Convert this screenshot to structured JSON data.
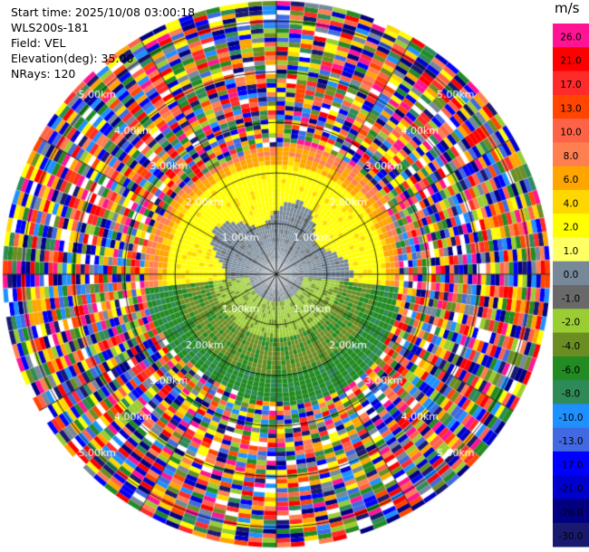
{
  "info": {
    "start_time": "Start time: 2025/10/08 03:00:18",
    "station": "WLS200s-181",
    "field": "Field: VEL",
    "elevation": "Elevation(deg): 35.00",
    "nrays": "NRays: 120"
  },
  "colorbar": {
    "unit": "m/s",
    "levels": [
      {
        "label": "26.0",
        "color": "#ff1493"
      },
      {
        "label": "21.0",
        "color": "#ff0000"
      },
      {
        "label": "17.0",
        "color": "#ff2a2a"
      },
      {
        "label": "13.0",
        "color": "#ff4500"
      },
      {
        "label": "10.0",
        "color": "#ff6347"
      },
      {
        "label": "8.0",
        "color": "#ff7f50"
      },
      {
        "label": "6.0",
        "color": "#ffa500"
      },
      {
        "label": "4.0",
        "color": "#ffd700"
      },
      {
        "label": "2.0",
        "color": "#ffff00"
      },
      {
        "label": "1.0",
        "color": "#ffff66"
      },
      {
        "label": "0.0",
        "color": "#778899"
      },
      {
        "label": "-1.0",
        "color": "#696969"
      },
      {
        "label": "-2.0",
        "color": "#9acd32"
      },
      {
        "label": "-4.0",
        "color": "#6b8e23"
      },
      {
        "label": "-6.0",
        "color": "#228b22"
      },
      {
        "label": "-8.0",
        "color": "#2e8b57"
      },
      {
        "label": "-10.0",
        "color": "#1e90ff"
      },
      {
        "label": "-13.0",
        "color": "#4169e1"
      },
      {
        "label": "-17.0",
        "color": "#0000ff"
      },
      {
        "label": "-21.0",
        "color": "#0000cd"
      },
      {
        "label": "-26.0",
        "color": "#000080"
      },
      {
        "label": "-30.0",
        "color": "#191970"
      }
    ]
  },
  "chart_data": {
    "type": "heatmap",
    "projection": "polar (PPI)",
    "field": "VEL",
    "nrays": 120,
    "range_rings_km": [
      1,
      2,
      3,
      4,
      5
    ],
    "ring_labels": [
      "1.00km",
      "2.00km",
      "3.00km",
      "4.00km",
      "5.00km"
    ],
    "spoke_angles_deg": [
      0,
      30,
      60,
      90,
      120,
      150,
      180,
      210,
      240,
      270,
      300,
      330
    ],
    "max_range_km": 5.4,
    "regions": [
      {
        "description_value": "near-zero",
        "range_km": [
          0,
          1.3
        ],
        "sector": "north",
        "value": 0.0
      },
      {
        "description_value": "positive",
        "range_km": [
          0.9,
          2.2
        ],
        "sector": "north",
        "value": 2.0
      },
      {
        "description_value": "positive",
        "range_km": [
          1.8,
          2.6
        ],
        "sector": "north",
        "value": 6.0
      },
      {
        "description_value": "negative",
        "range_km": [
          0,
          1.3
        ],
        "sector": "south",
        "value": -2.0
      },
      {
        "description_value": "negative",
        "range_km": [
          1.3,
          2.6
        ],
        "sector": "south",
        "value": -6.0
      },
      {
        "description_value": "noise",
        "range_km": [
          2.6,
          5.4
        ],
        "sector": "all",
        "value": null
      }
    ]
  }
}
